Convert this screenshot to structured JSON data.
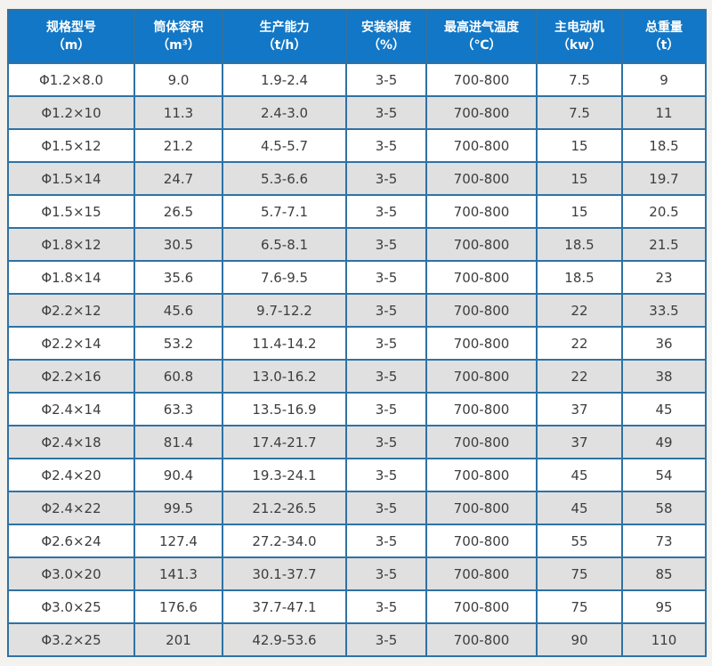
{
  "table": {
    "header": [
      {
        "title": "规格型号",
        "unit": "（m）"
      },
      {
        "title": "筒体容积",
        "unit": "（m³）"
      },
      {
        "title": "生产能力",
        "unit": "（t/h）"
      },
      {
        "title": "安装斜度",
        "unit": "（%）"
      },
      {
        "title": "最高进气温度",
        "unit": "（℃）"
      },
      {
        "title": "主电动机",
        "unit": "（kw）"
      },
      {
        "title": "总重量",
        "unit": "（t）"
      }
    ],
    "rows": [
      [
        "Φ1.2×8.0",
        "9.0",
        "1.9-2.4",
        "3-5",
        "700-800",
        "7.5",
        "9"
      ],
      [
        "Φ1.2×10",
        "11.3",
        "2.4-3.0",
        "3-5",
        "700-800",
        "7.5",
        "11"
      ],
      [
        "Φ1.5×12",
        "21.2",
        "4.5-5.7",
        "3-5",
        "700-800",
        "15",
        "18.5"
      ],
      [
        "Φ1.5×14",
        "24.7",
        "5.3-6.6",
        "3-5",
        "700-800",
        "15",
        "19.7"
      ],
      [
        "Φ1.5×15",
        "26.5",
        "5.7-7.1",
        "3-5",
        "700-800",
        "15",
        "20.5"
      ],
      [
        "Φ1.8×12",
        "30.5",
        "6.5-8.1",
        "3-5",
        "700-800",
        "18.5",
        "21.5"
      ],
      [
        "Φ1.8×14",
        "35.6",
        "7.6-9.5",
        "3-5",
        "700-800",
        "18.5",
        "23"
      ],
      [
        "Φ2.2×12",
        "45.6",
        "9.7-12.2",
        "3-5",
        "700-800",
        "22",
        "33.5"
      ],
      [
        "Φ2.2×14",
        "53.2",
        "11.4-14.2",
        "3-5",
        "700-800",
        "22",
        "36"
      ],
      [
        "Φ2.2×16",
        "60.8",
        "13.0-16.2",
        "3-5",
        "700-800",
        "22",
        "38"
      ],
      [
        "Φ2.4×14",
        "63.3",
        "13.5-16.9",
        "3-5",
        "700-800",
        "37",
        "45"
      ],
      [
        "Φ2.4×18",
        "81.4",
        "17.4-21.7",
        "3-5",
        "700-800",
        "37",
        "49"
      ],
      [
        "Φ2.4×20",
        "90.4",
        "19.3-24.1",
        "3-5",
        "700-800",
        "45",
        "54"
      ],
      [
        "Φ2.4×22",
        "99.5",
        "21.2-26.5",
        "3-5",
        "700-800",
        "45",
        "58"
      ],
      [
        "Φ2.6×24",
        "127.4",
        "27.2-34.0",
        "3-5",
        "700-800",
        "55",
        "73"
      ],
      [
        "Φ3.0×20",
        "141.3",
        "30.1-37.7",
        "3-5",
        "700-800",
        "75",
        "85"
      ],
      [
        "Φ3.0×25",
        "176.6",
        "37.7-47.1",
        "3-5",
        "700-800",
        "75",
        "95"
      ],
      [
        "Φ3.2×25",
        "201",
        "42.9-53.6",
        "3-5",
        "700-800",
        "90",
        "110"
      ]
    ]
  },
  "colors": {
    "page_bg": "#f3f2ee",
    "header_bg": "#1277c6",
    "header_text": "#ffffff",
    "border": "#2f72a4",
    "row_bg": "#ffffff",
    "row_alt_bg": "#e0e0e0",
    "body_text": "#3d3d3d"
  }
}
